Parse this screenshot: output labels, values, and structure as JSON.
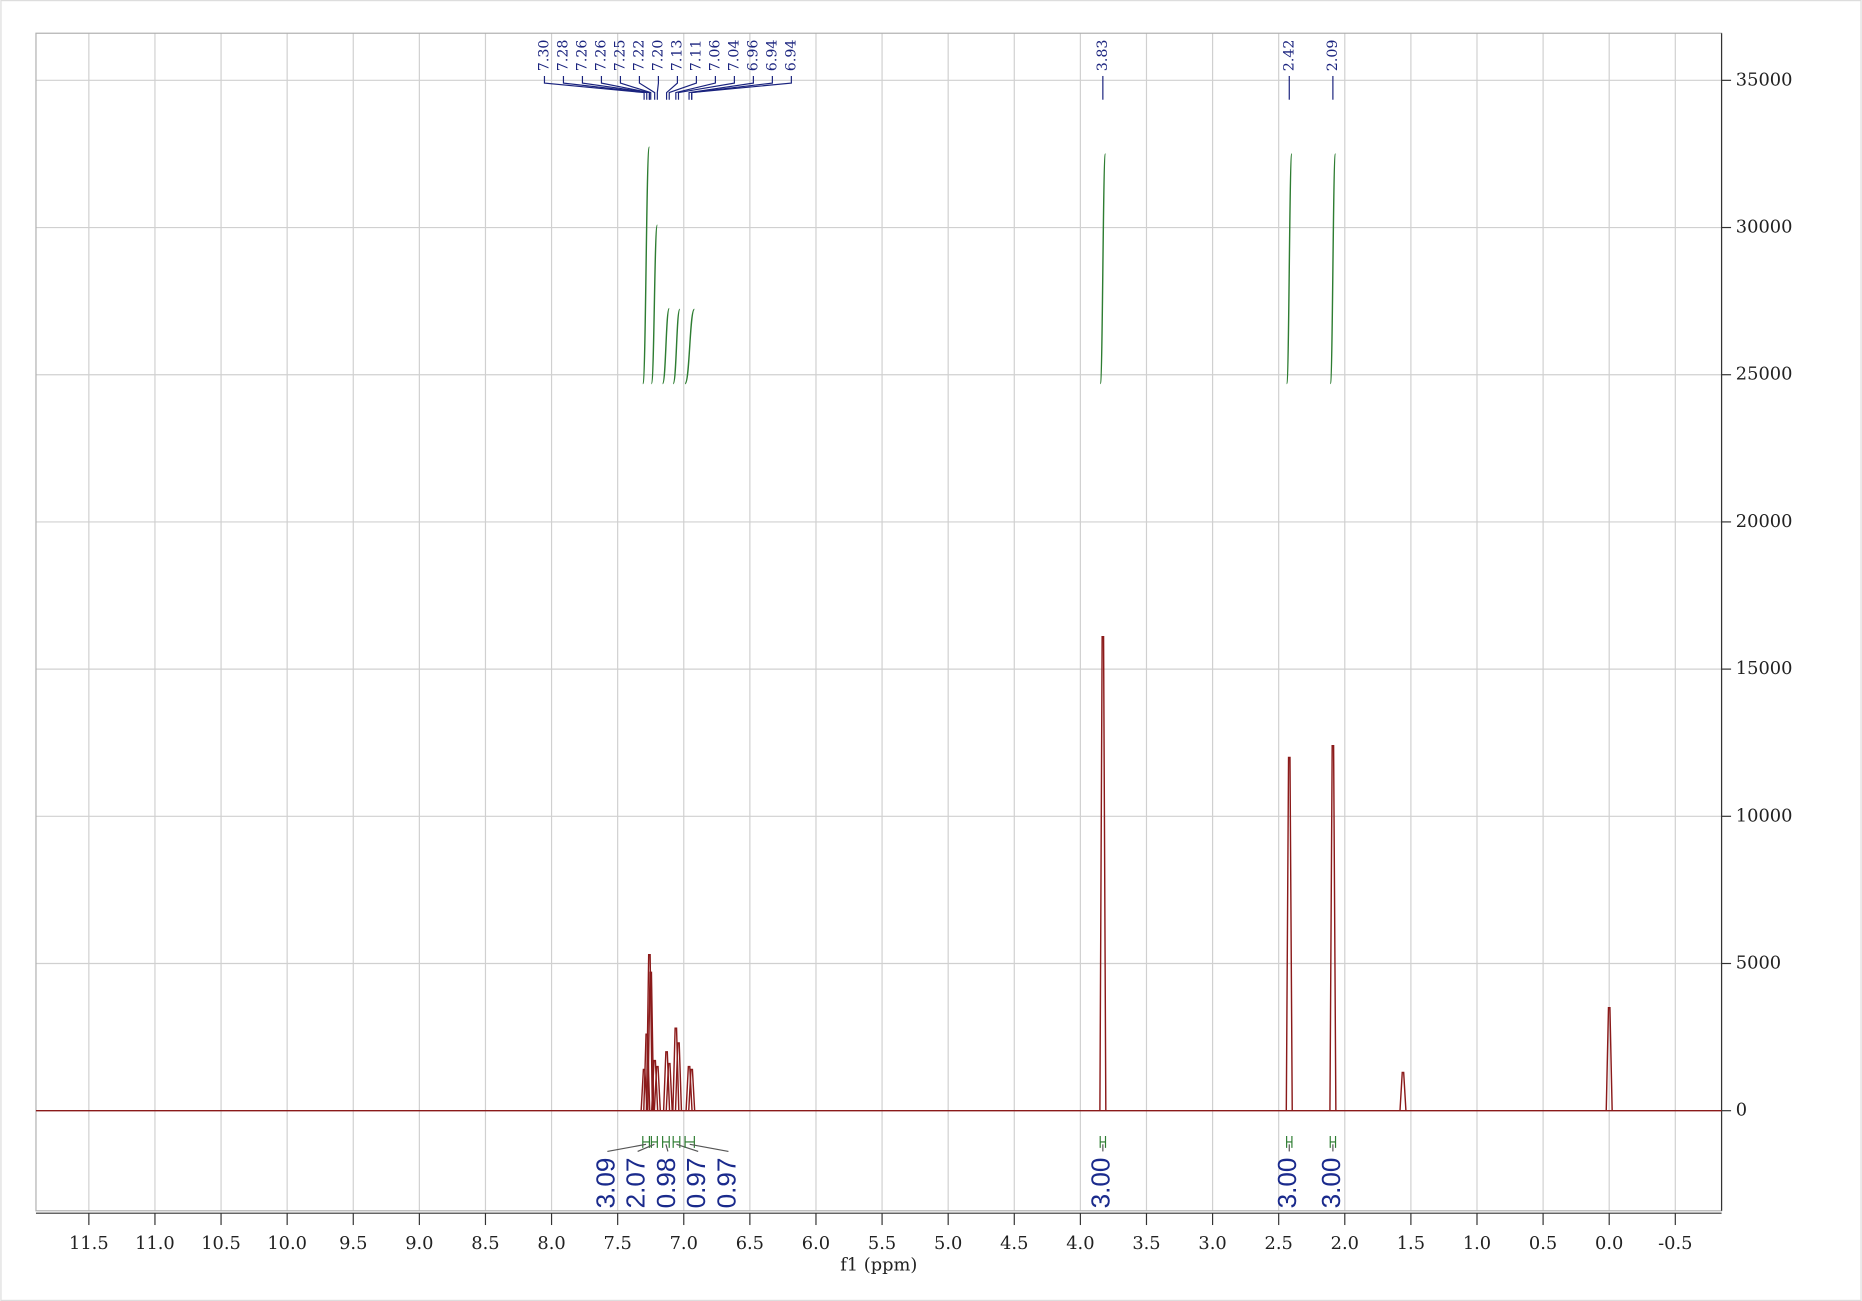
{
  "chart_data": {
    "type": "spectrum",
    "xlabel": "f1 (ppm)",
    "xlim": [
      11.9,
      -0.85
    ],
    "xticks": [
      11.5,
      {
        "value": 11,
        "label": "11.0"
      },
      10.5,
      {
        "value": 10,
        "label": "10.0"
      },
      9.5,
      {
        "value": 9,
        "label": "9.0"
      },
      8.5,
      {
        "value": 8,
        "label": "8.0"
      },
      7.5,
      {
        "value": 7,
        "label": "7.0"
      },
      6.5,
      {
        "value": 6,
        "label": "6.0"
      },
      5.5,
      {
        "value": 5,
        "label": "5.0"
      },
      4.5,
      {
        "value": 4,
        "label": "4.0"
      },
      3.5,
      {
        "value": 3,
        "label": "3.0"
      },
      2.5,
      {
        "value": 2,
        "label": "2.0"
      },
      1.5,
      {
        "value": 1,
        "label": "1.0"
      },
      0.5,
      {
        "value": 0,
        "label": "0.0"
      },
      -0.5
    ],
    "ylim": [
      -3400,
      36600
    ],
    "yticks": [
      0,
      5000,
      10000,
      15000,
      20000,
      25000,
      30000,
      35000
    ],
    "grid": true,
    "color": "#8b1a1a",
    "x": [
      7.3,
      7.28,
      7.26,
      7.25,
      7.22,
      7.2,
      7.13,
      7.11,
      7.06,
      7.04,
      6.96,
      6.94,
      3.83,
      2.42,
      2.09,
      1.56,
      0.0
    ],
    "values": [
      1400,
      2600,
      5300,
      4700,
      1700,
      1500,
      2000,
      1600,
      2800,
      2300,
      1500,
      1400,
      16100,
      12000,
      12400,
      1300,
      3500
    ],
    "peak_labels": [
      {
        "value": 7.3,
        "label": "7.30"
      },
      7.28,
      7.26,
      7.26,
      7.25,
      7.22,
      {
        "value": 7.2,
        "label": "7.20"
      },
      7.13,
      7.11,
      7.06,
      7.04,
      6.96,
      6.94,
      6.94,
      3.83,
      2.42,
      2.09
    ],
    "integrals": {
      "color": "#2e7d32",
      "ranges": [
        [
          7.31,
          7.26
        ],
        [
          7.245,
          7.2
        ],
        [
          7.16,
          7.11
        ],
        [
          7.08,
          7.03
        ],
        [
          6.99,
          6.92
        ],
        [
          3.85,
          3.81
        ],
        [
          2.44,
          2.4
        ],
        [
          2.11,
          2.07
        ]
      ],
      "values": [
        3.09,
        2.07,
        0.98,
        0.97,
        0.97,
        3,
        3,
        3
      ],
      "value_labels": [
        "3.09",
        "2.07",
        "0.98",
        "0.97",
        "0.97",
        "3.00",
        "3.00",
        "3.00"
      ]
    }
  }
}
